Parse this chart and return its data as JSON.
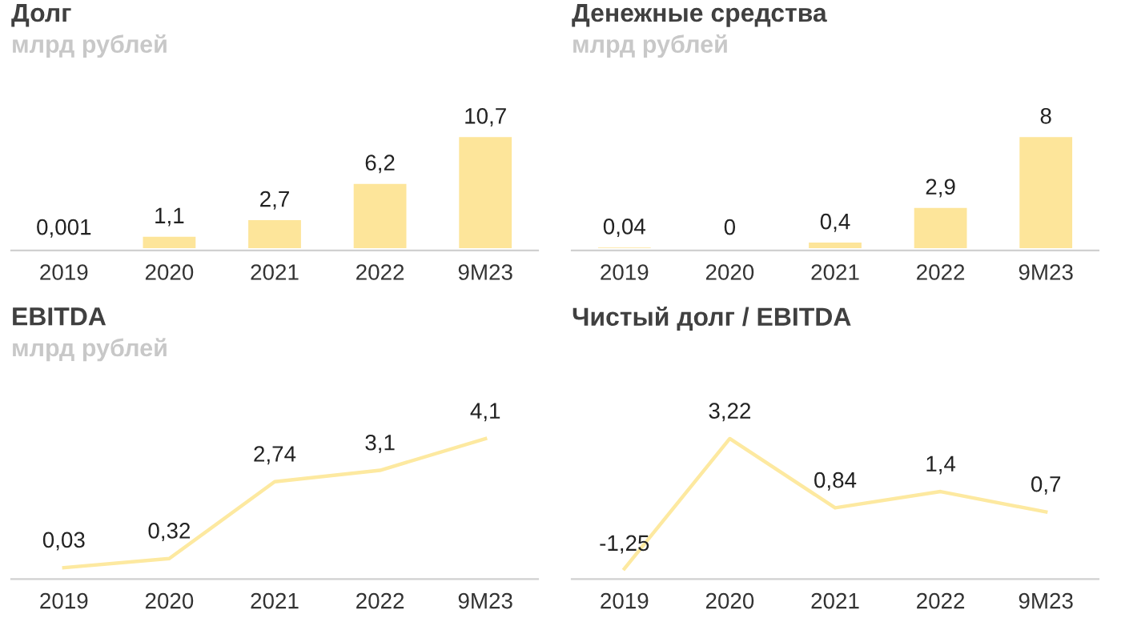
{
  "chart_data": [
    {
      "type": "bar",
      "title": "Долг",
      "subtitle": "млрд рублей",
      "categories": [
        "2019",
        "2020",
        "2021",
        "2022",
        "9M23"
      ],
      "values": [
        0.001,
        1.1,
        2.7,
        6.2,
        10.7
      ],
      "value_labels": [
        "0,001",
        "1,1",
        "2,7",
        "6,2",
        "10,7"
      ],
      "color": "#fde59a",
      "tick_labels": "x",
      "grid": false
    },
    {
      "type": "bar",
      "title": "Денежные средства",
      "subtitle": "млрд рублей",
      "categories": [
        "2019",
        "2020",
        "2021",
        "2022",
        "9M23"
      ],
      "values": [
        0.04,
        0,
        0.4,
        2.9,
        8
      ],
      "value_labels": [
        "0,04",
        "0",
        "0,4",
        "2,9",
        "8"
      ],
      "color": "#fde59a",
      "tick_labels": "x",
      "grid": false
    },
    {
      "type": "line",
      "title": "EBITDA",
      "subtitle": "млрд рублей",
      "categories": [
        "2019",
        "2020",
        "2021",
        "2022",
        "9M23"
      ],
      "values": [
        0.03,
        0.32,
        2.74,
        3.1,
        4.1
      ],
      "value_labels": [
        "0,03",
        "0,32",
        "2,74",
        "3,1",
        "4,1"
      ],
      "color": "#fde9a0",
      "tick_labels": "x",
      "grid": false,
      "marker": "none"
    },
    {
      "type": "line",
      "title": "Чистый долг / EBITDA",
      "categories": [
        "2019",
        "2020",
        "2021",
        "2022",
        "9M23"
      ],
      "values": [
        -1.25,
        3.22,
        0.84,
        1.4,
        0.7
      ],
      "value_labels": [
        "-1,25",
        "3,22",
        "0,84",
        "1,4",
        "0,7"
      ],
      "color": "#fde9a0",
      "tick_labels": "x",
      "grid": false,
      "marker": "none"
    }
  ]
}
